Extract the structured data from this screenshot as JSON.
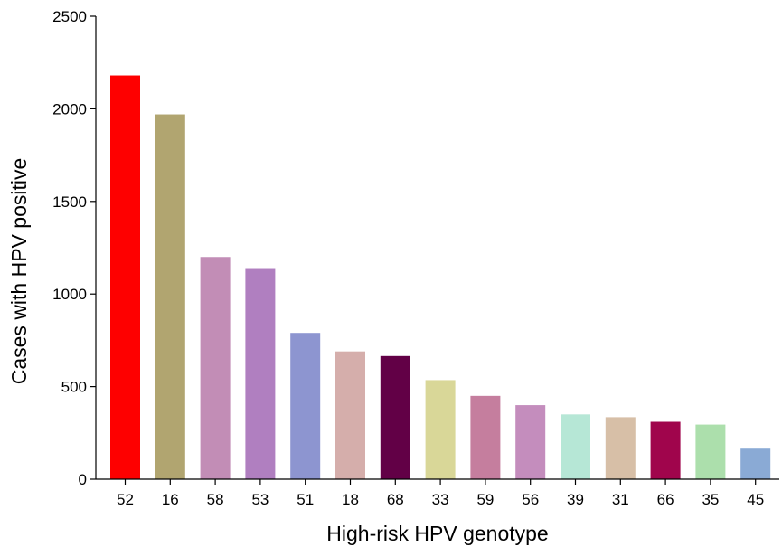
{
  "chart_data": {
    "type": "bar",
    "title": "",
    "xlabel": "High-risk HPV genotype",
    "ylabel": "Cases with HPV positive",
    "ylim": [
      0,
      2500
    ],
    "yticks": [
      0,
      500,
      1000,
      1500,
      2000,
      2500
    ],
    "grid": false,
    "legend": "none",
    "categories": [
      "52",
      "16",
      "58",
      "53",
      "51",
      "18",
      "68",
      "33",
      "59",
      "56",
      "39",
      "31",
      "66",
      "35",
      "45"
    ],
    "values": [
      2180,
      1970,
      1200,
      1140,
      790,
      690,
      665,
      535,
      450,
      400,
      350,
      335,
      310,
      295,
      165
    ],
    "colors": [
      "#fe0000",
      "#b1a570",
      "#c28db6",
      "#b07fc0",
      "#8d95d0",
      "#d5aeab",
      "#620046",
      "#d9d798",
      "#c57e9e",
      "#c48dbd",
      "#b6e7d6",
      "#d7bfa7",
      "#a0054c",
      "#acdfac",
      "#8aaad5"
    ]
  }
}
